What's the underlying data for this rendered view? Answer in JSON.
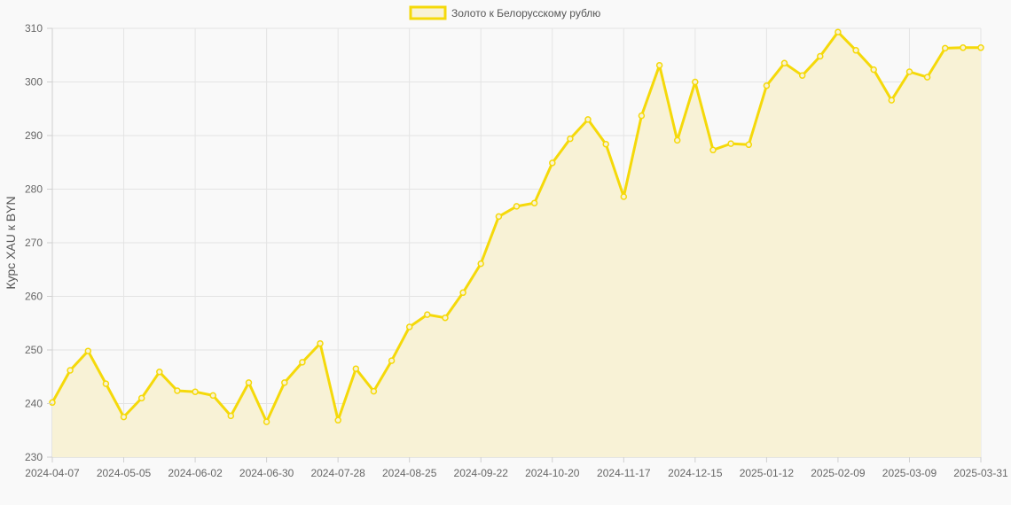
{
  "chart_data": {
    "type": "line",
    "ylabel": "Курс XAU к BYN",
    "xlabel": "",
    "ylim": [
      230,
      310
    ],
    "y_ticks": [
      230,
      240,
      250,
      260,
      270,
      280,
      290,
      300,
      310
    ],
    "x_tick_labels": [
      "2024-04-07",
      "2024-05-05",
      "2024-06-02",
      "2024-06-30",
      "2024-07-28",
      "2024-08-25",
      "2024-09-22",
      "2024-10-20",
      "2024-11-17",
      "2024-12-15",
      "2025-01-12",
      "2025-02-09",
      "2025-03-09",
      "2025-03-31"
    ],
    "grid": true,
    "legend_position": "top-center",
    "series": [
      {
        "name": "Золото к Белорусскому рублю",
        "color": "#f5d90a",
        "fill_color": "#f8f2d6",
        "values": [
          240.2,
          246.2,
          249.8,
          243.7,
          237.5,
          241.0,
          245.9,
          242.4,
          242.2,
          241.5,
          237.7,
          243.9,
          236.6,
          243.9,
          247.7,
          251.2,
          236.9,
          246.5,
          242.3,
          248.0,
          254.3,
          256.6,
          256.0,
          260.7,
          266.1,
          274.9,
          276.8,
          277.4,
          284.9,
          289.4,
          293.0,
          288.4,
          278.6,
          293.7,
          303.1,
          289.1,
          300.0,
          287.3,
          288.5,
          288.3,
          299.3,
          303.5,
          301.2,
          304.8,
          309.3,
          305.9,
          302.3,
          296.6,
          301.9,
          300.9,
          306.3,
          306.4,
          306.4
        ]
      }
    ]
  }
}
